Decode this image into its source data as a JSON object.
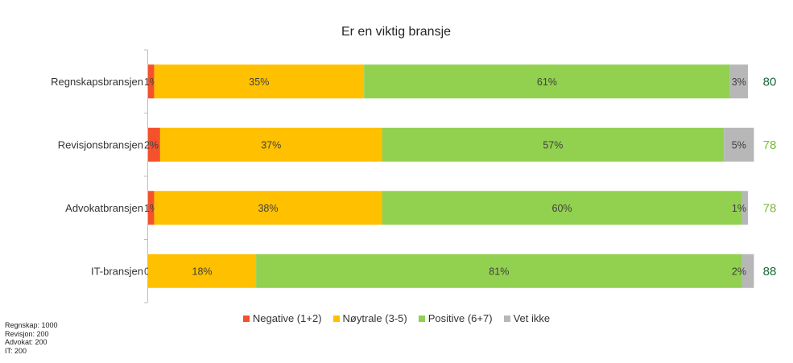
{
  "chart_data": {
    "type": "bar",
    "orientation": "horizontal",
    "stacked": true,
    "title": "Er en viktig bransje",
    "categories": [
      "Regnskapsbransjen",
      "Revisjonsbransjen",
      "Advokatbransjen",
      "IT-bransjen"
    ],
    "series": [
      {
        "name": "Negative (1+2)",
        "color": "#F4512C",
        "values": [
          1,
          2,
          1,
          0
        ],
        "labels": [
          "1%",
          "2%",
          "1%",
          "0%"
        ]
      },
      {
        "name": "Nøytrale (3-5)",
        "color": "#FFC000",
        "values": [
          35,
          37,
          38,
          18
        ],
        "labels": [
          "35%",
          "37%",
          "38%",
          "18%"
        ]
      },
      {
        "name": "Positive (6+7)",
        "color": "#92D050",
        "values": [
          61,
          57,
          60,
          81
        ],
        "labels": [
          "61%",
          "57%",
          "60%",
          "81%"
        ]
      },
      {
        "name": "Vet ikke",
        "color": "#B7B7B7",
        "values": [
          3,
          5,
          1,
          2
        ],
        "labels": [
          "3%",
          "5%",
          "1%",
          "2%"
        ]
      }
    ],
    "scores": [
      {
        "value": "80",
        "color": "#1A6B3A"
      },
      {
        "value": "78",
        "color": "#7DB83A"
      },
      {
        "value": "78",
        "color": "#7DB83A"
      },
      {
        "value": "88",
        "color": "#1A6B3A"
      }
    ],
    "xlim": [
      0,
      100
    ],
    "legend_position": "bottom"
  },
  "sample_sizes": [
    "Regnskap: 1000",
    "Revisjon: 200",
    "Advokat: 200",
    "IT: 200"
  ]
}
